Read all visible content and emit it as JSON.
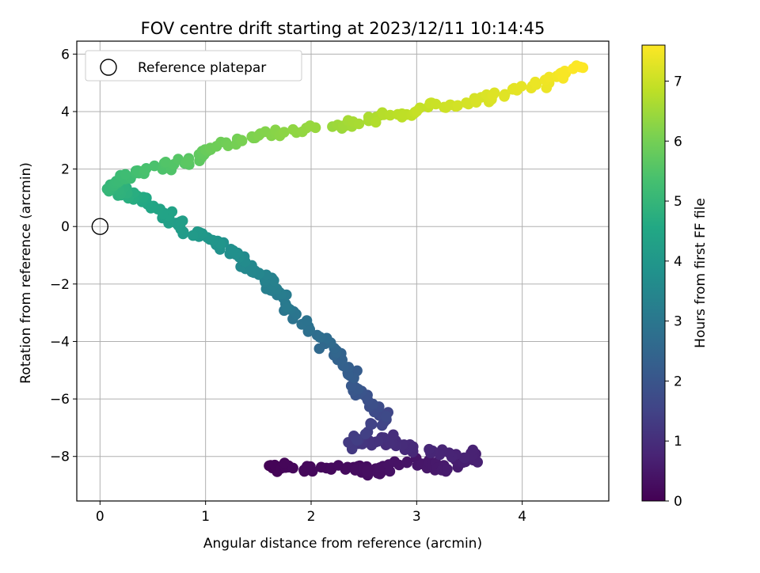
{
  "chart_data": {
    "type": "scatter",
    "title": "FOV centre drift starting at 2023/12/11 10:14:45",
    "xlabel": "Angular distance from reference (arcmin)",
    "ylabel": "Rotation from reference (arcmin)",
    "xlim": [
      -0.22,
      4.82
    ],
    "ylim": [
      -9.55,
      6.45
    ],
    "xticks": [
      0,
      1,
      2,
      3,
      4
    ],
    "yticks": [
      -8,
      -6,
      -4,
      -2,
      0,
      2,
      4,
      6
    ],
    "grid": true,
    "legend": {
      "position": "top-left",
      "entries": [
        "Reference platepar"
      ]
    },
    "reference_point": {
      "x": 0,
      "y": 0
    },
    "colorbar": {
      "label": "Hours from first FF file",
      "colormap": "viridis",
      "range": [
        0,
        7.6
      ],
      "ticks": [
        0,
        1,
        2,
        3,
        4,
        5,
        6,
        7
      ]
    },
    "anchors": [
      {
        "x": 1.58,
        "y": -8.37,
        "t": 0.0
      },
      {
        "x": 1.8,
        "y": -8.42,
        "t": 0.12
      },
      {
        "x": 2.4,
        "y": -8.42,
        "t": 0.22
      },
      {
        "x": 2.55,
        "y": -8.5,
        "t": 0.3
      },
      {
        "x": 3.05,
        "y": -8.2,
        "t": 0.45
      },
      {
        "x": 3.25,
        "y": -8.45,
        "t": 0.55
      },
      {
        "x": 3.55,
        "y": -7.95,
        "t": 0.7
      },
      {
        "x": 3.0,
        "y": -7.75,
        "t": 0.85
      },
      {
        "x": 2.75,
        "y": -7.45,
        "t": 1.0
      },
      {
        "x": 2.35,
        "y": -7.6,
        "t": 1.25
      },
      {
        "x": 2.7,
        "y": -6.6,
        "t": 1.6
      },
      {
        "x": 2.48,
        "y": -5.8,
        "t": 2.0
      },
      {
        "x": 2.35,
        "y": -4.9,
        "t": 2.3
      },
      {
        "x": 2.05,
        "y": -3.8,
        "t": 2.7
      },
      {
        "x": 1.75,
        "y": -2.6,
        "t": 3.1
      },
      {
        "x": 1.6,
        "y": -1.9,
        "t": 3.3
      },
      {
        "x": 1.35,
        "y": -1.2,
        "t": 3.6
      },
      {
        "x": 1.1,
        "y": -0.5,
        "t": 3.9
      },
      {
        "x": 0.8,
        "y": -0.1,
        "t": 4.15
      },
      {
        "x": 0.55,
        "y": 0.6,
        "t": 4.4
      },
      {
        "x": 0.3,
        "y": 1.1,
        "t": 4.7
      },
      {
        "x": 0.05,
        "y": 1.35,
        "t": 5.0
      },
      {
        "x": 0.35,
        "y": 1.9,
        "t": 5.3
      },
      {
        "x": 0.8,
        "y": 2.2,
        "t": 5.6
      },
      {
        "x": 1.1,
        "y": 2.8,
        "t": 5.9
      },
      {
        "x": 1.6,
        "y": 3.2,
        "t": 6.2
      },
      {
        "x": 2.3,
        "y": 3.5,
        "t": 6.5
      },
      {
        "x": 2.8,
        "y": 3.9,
        "t": 6.8
      },
      {
        "x": 3.2,
        "y": 4.2,
        "t": 7.0
      },
      {
        "x": 3.7,
        "y": 4.5,
        "t": 7.2
      },
      {
        "x": 4.2,
        "y": 5.0,
        "t": 7.4
      },
      {
        "x": 4.55,
        "y": 5.55,
        "t": 7.6
      }
    ],
    "points_per_segment": 14
  }
}
